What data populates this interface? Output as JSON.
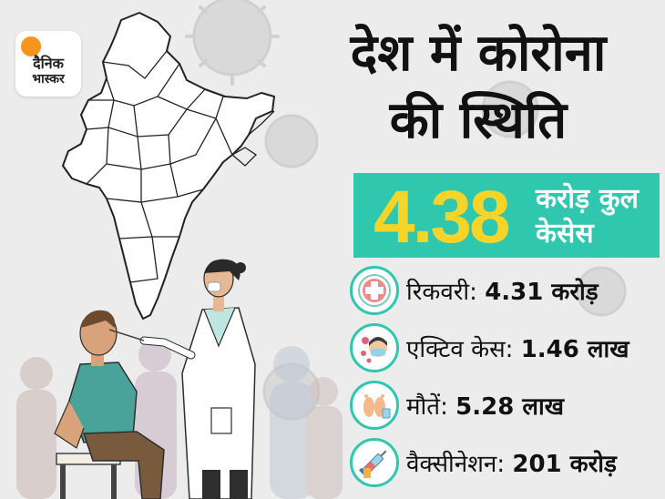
{
  "brand": {
    "logo_line1": "दैनिक",
    "logo_line2": "भास्कर",
    "accent": "#f7941d"
  },
  "headline": {
    "line1": "देश में कोरोना",
    "line2": "की स्थिति"
  },
  "total": {
    "number": "4.38",
    "label_line1": "करोड़ कुल",
    "label_line2": "केसेस",
    "box_color": "#2fc7ad",
    "number_color": "#f6d42a"
  },
  "stats": [
    {
      "icon": "medical-cross-icon",
      "label": "रिकवरी:",
      "value": "4.31 करोड़"
    },
    {
      "icon": "masked-person-icon",
      "label": "एक्टिव केस:",
      "value": "1.46 लाख"
    },
    {
      "icon": "feet-tag-icon",
      "label": "मौतें:",
      "value": "5.28 लाख"
    },
    {
      "icon": "syringe-icon",
      "label": "वैक्सीनेशन:",
      "value": "201 करोड़"
    }
  ]
}
